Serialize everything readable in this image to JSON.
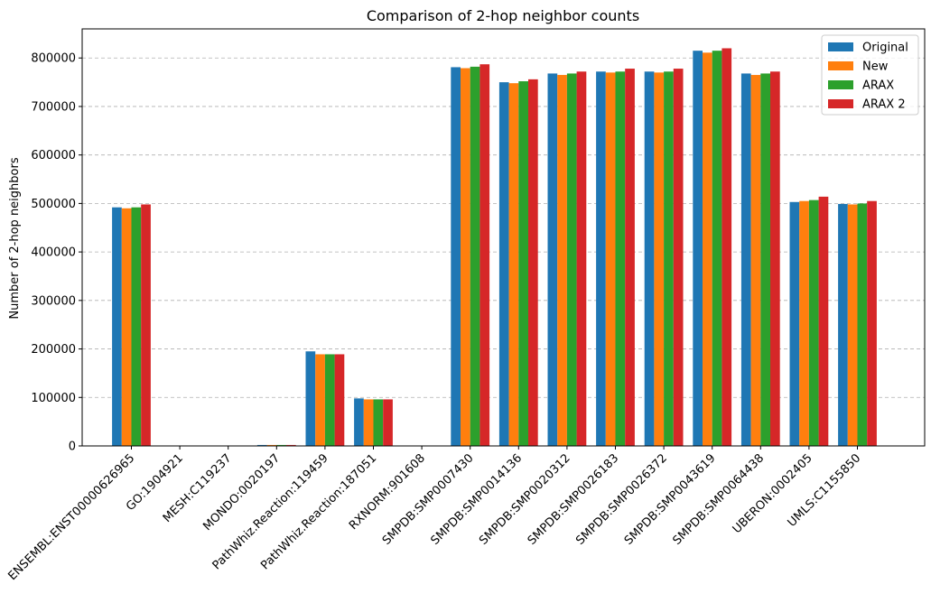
{
  "chart_data": {
    "type": "bar",
    "title": "Comparison of 2-hop neighbor counts",
    "xlabel": "",
    "ylabel": "Number of 2-hop neighbors",
    "ylim": [
      0,
      860000
    ],
    "yticks": [
      0,
      100000,
      200000,
      300000,
      400000,
      500000,
      600000,
      700000,
      800000
    ],
    "ytick_labels": [
      "0",
      "100000",
      "200000",
      "300000",
      "400000",
      "500000",
      "600000",
      "700000",
      "800000"
    ],
    "grid": "y-dashed",
    "legend_position": "top-right",
    "categories": [
      "ENSEMBL:ENST00000626965",
      "GO:1904921",
      "MESH:C119237",
      "MONDO:0020197",
      "PathWhiz.Reaction:119459",
      "PathWhiz.Reaction:187051",
      "RXNORM:901608",
      "SMPDB:SMP0007430",
      "SMPDB:SMP0014136",
      "SMPDB:SMP0020312",
      "SMPDB:SMP0026183",
      "SMPDB:SMP0026372",
      "SMPDB:SMP0043619",
      "SMPDB:SMP0064438",
      "UBERON:0002405",
      "UMLS:C1155850"
    ],
    "series": [
      {
        "name": "Original",
        "color": "#1f77b4",
        "values": [
          492000,
          0,
          0,
          2000,
          195000,
          98000,
          0,
          781000,
          750000,
          768000,
          772000,
          772000,
          815000,
          768000,
          503000,
          499000
        ]
      },
      {
        "name": "New",
        "color": "#ff7f0e",
        "values": [
          490000,
          0,
          0,
          2000,
          189000,
          96000,
          0,
          779000,
          748000,
          765000,
          770000,
          770000,
          811000,
          765000,
          505000,
          498000
        ]
      },
      {
        "name": "ARAX",
        "color": "#2ca02c",
        "values": [
          492000,
          0,
          0,
          2000,
          189000,
          96000,
          0,
          782000,
          752000,
          768000,
          772000,
          772000,
          815000,
          768000,
          507000,
          500000
        ]
      },
      {
        "name": "ARAX 2",
        "color": "#d62728",
        "values": [
          498000,
          0,
          0,
          2000,
          189000,
          96000,
          0,
          787000,
          756000,
          772000,
          778000,
          778000,
          820000,
          772000,
          514000,
          505000
        ]
      }
    ]
  }
}
